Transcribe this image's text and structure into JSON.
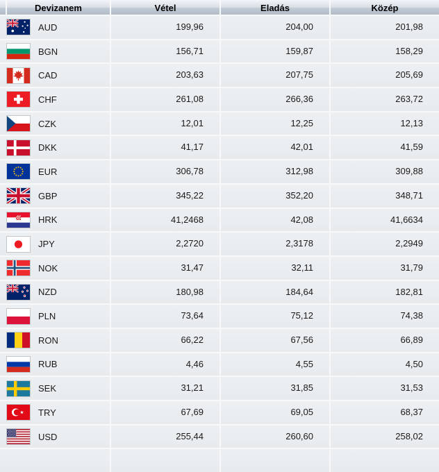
{
  "table": {
    "headers": {
      "currency": "Devizanem",
      "buy": "Vétel",
      "sell": "Eladás",
      "mid": "Közép"
    },
    "rows": [
      {
        "code": "AUD",
        "flag": "aud-flag-icon",
        "buy": "199,96",
        "sell": "204,00",
        "mid": "201,98"
      },
      {
        "code": "BGN",
        "flag": "bgn-flag-icon",
        "buy": "156,71",
        "sell": "159,87",
        "mid": "158,29"
      },
      {
        "code": "CAD",
        "flag": "cad-flag-icon",
        "buy": "203,63",
        "sell": "207,75",
        "mid": "205,69"
      },
      {
        "code": "CHF",
        "flag": "chf-flag-icon",
        "buy": "261,08",
        "sell": "266,36",
        "mid": "263,72"
      },
      {
        "code": "CZK",
        "flag": "czk-flag-icon",
        "buy": "12,01",
        "sell": "12,25",
        "mid": "12,13"
      },
      {
        "code": "DKK",
        "flag": "dkk-flag-icon",
        "buy": "41,17",
        "sell": "42,01",
        "mid": "41,59"
      },
      {
        "code": "EUR",
        "flag": "eur-flag-icon",
        "buy": "306,78",
        "sell": "312,98",
        "mid": "309,88"
      },
      {
        "code": "GBP",
        "flag": "gbp-flag-icon",
        "buy": "345,22",
        "sell": "352,20",
        "mid": "348,71"
      },
      {
        "code": "HRK",
        "flag": "hrk-flag-icon",
        "buy": "41,2468",
        "sell": "42,08",
        "mid": "41,6634"
      },
      {
        "code": "JPY",
        "flag": "jpy-flag-icon",
        "buy": "2,2720",
        "sell": "2,3178",
        "mid": "2,2949"
      },
      {
        "code": "NOK",
        "flag": "nok-flag-icon",
        "buy": "31,47",
        "sell": "32,11",
        "mid": "31,79"
      },
      {
        "code": "NZD",
        "flag": "nzd-flag-icon",
        "buy": "180,98",
        "sell": "184,64",
        "mid": "182,81"
      },
      {
        "code": "PLN",
        "flag": "pln-flag-icon",
        "buy": "73,64",
        "sell": "75,12",
        "mid": "74,38"
      },
      {
        "code": "RON",
        "flag": "ron-flag-icon",
        "buy": "66,22",
        "sell": "67,56",
        "mid": "66,89"
      },
      {
        "code": "RUB",
        "flag": "rub-flag-icon",
        "buy": "4,46",
        "sell": "4,55",
        "mid": "4,50"
      },
      {
        "code": "SEK",
        "flag": "sek-flag-icon",
        "buy": "31,21",
        "sell": "31,85",
        "mid": "31,53"
      },
      {
        "code": "TRY",
        "flag": "try-flag-icon",
        "buy": "67,69",
        "sell": "69,05",
        "mid": "68,37"
      },
      {
        "code": "USD",
        "flag": "usd-flag-icon",
        "buy": "255,44",
        "sell": "260,60",
        "mid": "258,02"
      }
    ],
    "colors": {
      "header_top": "#eff2f6",
      "header_bottom": "#b1bcc7",
      "row_background": "#e9edf0",
      "separator": "#f6f8f9",
      "text": "#1a1a1a"
    }
  }
}
